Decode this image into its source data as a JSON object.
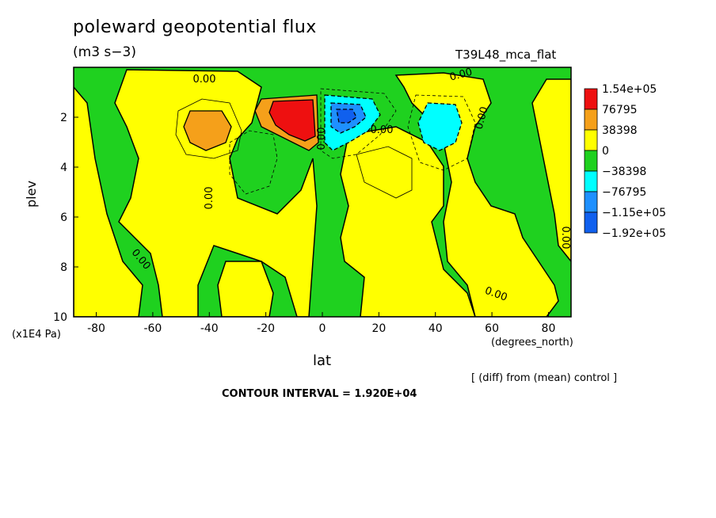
{
  "title": "poleward geopotential flux",
  "units": "(m3 s−3)",
  "run_label": "T39L48_mca_flat",
  "note": "[ (diff) from (mean) control ]",
  "contour_interval": "CONTOUR INTERVAL = 1.920E+04",
  "chart_data": {
    "type": "heatmap",
    "xlabel": "lat",
    "ylabel": "plev",
    "x_units": "(degrees_north)",
    "y_units": "(x1E4 Pa)",
    "xlim": [
      -88,
      88
    ],
    "ylim": [
      10,
      0
    ],
    "x_ticks": [
      -80,
      -60,
      -40,
      -20,
      0,
      20,
      40,
      60,
      80
    ],
    "y_ticks": [
      2,
      4,
      6,
      8,
      10
    ],
    "legend": {
      "placement": "right",
      "entries": [
        {
          "label": "1.54e+05",
          "color": "#ee1010"
        },
        {
          "label": "76795",
          "color": "#f5a01a"
        },
        {
          "label": "38398",
          "color": "#ffff00"
        },
        {
          "label": "0",
          "color": "#1fd11f"
        },
        {
          "label": "−38398",
          "color": "#00ffff"
        },
        {
          "label": "−76795",
          "color": "#1e90ff"
        },
        {
          "label": "−1.15e+05",
          "color": "#1060ee"
        },
        {
          "label": "−1.92e+05",
          "color": ""
        }
      ]
    },
    "contour_labels": [
      "0.00",
      "0.00",
      "0.00",
      "0.00",
      "0.00",
      "0.00",
      "0.00",
      "0.00",
      "0.00"
    ],
    "colors": {
      "background": "#1fd11f",
      "positive_low": "#ffff00",
      "positive_mid": "#f5a01a",
      "positive_high": "#ee1010",
      "negative_mid": "#00ffff",
      "negative_high": "#1e90ff",
      "negative_max": "#1060ee"
    }
  }
}
